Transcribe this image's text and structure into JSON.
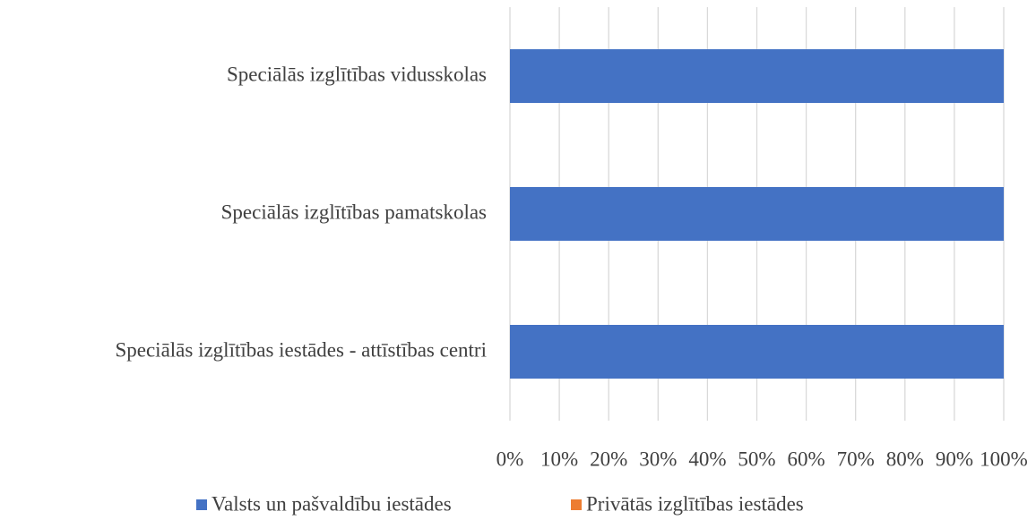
{
  "chart_data": {
    "type": "stacked_hbar",
    "categories": [
      "Speciālās izglītības vidusskolas",
      "Speciālās izglītības pamatskolas",
      "Speciālās izglītības iestādes - attīstības centri"
    ],
    "series": [
      {
        "name": "Valsts un pašvaldību iestādes",
        "color": "#4472c4",
        "values": [
          100,
          100,
          100
        ]
      },
      {
        "name": "Privātās izglītības iestādes",
        "color": "#ed7d31",
        "values": [
          0,
          0,
          0
        ]
      }
    ],
    "xlim": [
      0,
      100
    ],
    "xticks": [
      {
        "value": 0,
        "label": "0%"
      },
      {
        "value": 10,
        "label": "10%"
      },
      {
        "value": 20,
        "label": "20%"
      },
      {
        "value": 30,
        "label": "30%"
      },
      {
        "value": 40,
        "label": "40%"
      },
      {
        "value": 50,
        "label": "50%"
      },
      {
        "value": 60,
        "label": "60%"
      },
      {
        "value": 70,
        "label": "70%"
      },
      {
        "value": 80,
        "label": "80%"
      },
      {
        "value": 90,
        "label": "90%"
      },
      {
        "value": 100,
        "label": "100%"
      }
    ],
    "grid": true,
    "legend": "bottom"
  }
}
